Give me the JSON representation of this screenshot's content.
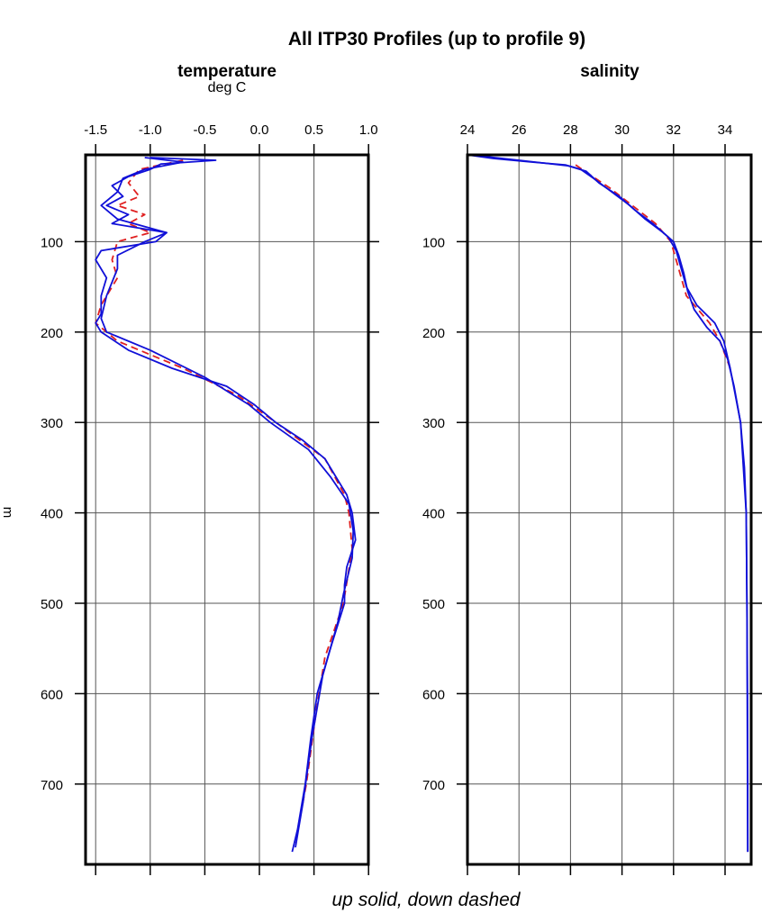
{
  "figure": {
    "title": "All ITP30 Profiles (up to profile 9)",
    "caption": "up solid, down dashed",
    "ylabel": "m",
    "colors": {
      "up": "#1010d8",
      "down": "#e02020",
      "grid": "#555555",
      "frame": "#000000"
    }
  },
  "panels": {
    "temperature": {
      "title": "temperature",
      "units": "deg C",
      "x_ticks": [
        "-1.5",
        "-1.0",
        "-0.5",
        "0.0",
        "0.5",
        "1.0"
      ],
      "y_ticks": [
        "100",
        "200",
        "300",
        "400",
        "500",
        "600",
        "700"
      ]
    },
    "salinity": {
      "title": "salinity",
      "units": "",
      "x_ticks": [
        "24",
        "26",
        "28",
        "30",
        "32",
        "34"
      ],
      "y_ticks": [
        "100",
        "200",
        "300",
        "400",
        "500",
        "600",
        "700"
      ]
    }
  },
  "chart_data": [
    {
      "type": "line",
      "title": "temperature",
      "xlabel": "deg C",
      "ylabel": "m",
      "xlim": [
        -1.6,
        1.0
      ],
      "ylim": [
        789,
        4
      ],
      "x_ticks": [
        -1.5,
        -1.0,
        -0.5,
        0.0,
        0.5,
        1.0
      ],
      "y_ticks": [
        100,
        200,
        300,
        400,
        500,
        600,
        700
      ],
      "grid": true,
      "legend": "up solid, down dashed",
      "series": [
        {
          "name": "up (solid)",
          "style": "solid",
          "depth": [
            7,
            10,
            14,
            20,
            28,
            38,
            50,
            60,
            70,
            80,
            90,
            100,
            110,
            120,
            140,
            160,
            180,
            190,
            200,
            220,
            240,
            260,
            280,
            300,
            320,
            340,
            360,
            380,
            400,
            430,
            460,
            480,
            500,
            550,
            600,
            650,
            700,
            750,
            775
          ],
          "values": [
            -1.0,
            -0.4,
            -0.9,
            -1.0,
            -1.2,
            -1.35,
            -1.25,
            -1.4,
            -1.2,
            -1.35,
            -0.85,
            -0.95,
            -1.45,
            -1.5,
            -1.4,
            -1.45,
            -1.45,
            -1.5,
            -1.45,
            -1.2,
            -0.8,
            -0.3,
            -0.05,
            0.15,
            0.4,
            0.6,
            0.7,
            0.8,
            0.85,
            0.88,
            0.8,
            0.78,
            0.78,
            0.65,
            0.53,
            0.47,
            0.42,
            0.35,
            0.3
          ]
        },
        {
          "name": "up (solid) 2",
          "style": "solid",
          "depth": [
            7,
            12,
            20,
            30,
            45,
            60,
            75,
            90,
            100,
            115,
            130,
            160,
            185,
            200,
            220,
            250,
            280,
            300,
            330,
            360,
            390,
            420,
            450,
            490,
            520,
            580,
            650,
            720,
            770
          ],
          "values": [
            -1.05,
            -0.7,
            -1.05,
            -1.25,
            -1.3,
            -1.45,
            -1.3,
            -0.85,
            -1.05,
            -1.3,
            -1.3,
            -1.4,
            -1.45,
            -1.4,
            -1.0,
            -0.5,
            -0.1,
            0.1,
            0.45,
            0.65,
            0.82,
            0.86,
            0.85,
            0.77,
            0.72,
            0.58,
            0.48,
            0.4,
            0.33
          ]
        },
        {
          "name": "down (dashed)",
          "style": "dashed",
          "depth": [
            10,
            20,
            35,
            50,
            60,
            70,
            80,
            90,
            100,
            120,
            140,
            170,
            190,
            210,
            240,
            270,
            300,
            340,
            380,
            400,
            440,
            500,
            560,
            620,
            700,
            765
          ],
          "values": [
            -0.7,
            -1.1,
            -1.2,
            -1.1,
            -1.3,
            -1.05,
            -1.2,
            -1.0,
            -1.3,
            -1.35,
            -1.3,
            -1.45,
            -1.5,
            -1.3,
            -0.7,
            -0.2,
            0.15,
            0.6,
            0.78,
            0.82,
            0.85,
            0.77,
            0.6,
            0.52,
            0.43,
            0.33
          ]
        }
      ]
    },
    {
      "type": "line",
      "title": "salinity",
      "xlabel": "",
      "ylabel": "m",
      "xlim": [
        24,
        35
      ],
      "ylim": [
        789,
        4
      ],
      "x_ticks": [
        24,
        26,
        28,
        30,
        32,
        34
      ],
      "y_ticks": [
        100,
        200,
        300,
        400,
        500,
        600,
        700
      ],
      "grid": true,
      "legend": "up solid, down dashed",
      "series": [
        {
          "name": "up (solid)",
          "style": "solid",
          "depth": [
            4,
            8,
            12,
            15,
            20,
            30,
            45,
            60,
            75,
            90,
            100,
            115,
            135,
            155,
            175,
            195,
            210,
            230,
            260,
            300,
            350,
            400,
            500,
            600,
            700,
            775
          ],
          "values": [
            24.0,
            25.0,
            26.5,
            27.8,
            28.4,
            28.9,
            29.6,
            30.3,
            30.9,
            31.6,
            32.0,
            32.2,
            32.4,
            32.55,
            32.8,
            33.3,
            33.8,
            34.1,
            34.35,
            34.6,
            34.75,
            34.82,
            34.85,
            34.87,
            34.88,
            34.88
          ]
        },
        {
          "name": "up (solid) 2",
          "style": "solid",
          "depth": [
            4,
            10,
            16,
            22,
            35,
            50,
            65,
            80,
            95,
            110,
            130,
            150,
            170,
            190,
            210,
            240,
            300,
            400,
            500,
            775
          ],
          "values": [
            24.1,
            26.0,
            27.9,
            28.6,
            29.1,
            29.9,
            30.5,
            31.2,
            31.8,
            32.1,
            32.3,
            32.5,
            32.9,
            33.6,
            33.95,
            34.2,
            34.6,
            34.82,
            34.85,
            34.88
          ]
        },
        {
          "name": "down (dashed)",
          "style": "dashed",
          "depth": [
            15,
            25,
            40,
            60,
            80,
            100,
            130,
            160,
            190,
            210,
            240
          ],
          "values": [
            28.2,
            28.7,
            29.5,
            30.4,
            31.3,
            31.9,
            32.2,
            32.5,
            33.4,
            33.8,
            34.2
          ]
        }
      ]
    }
  ]
}
